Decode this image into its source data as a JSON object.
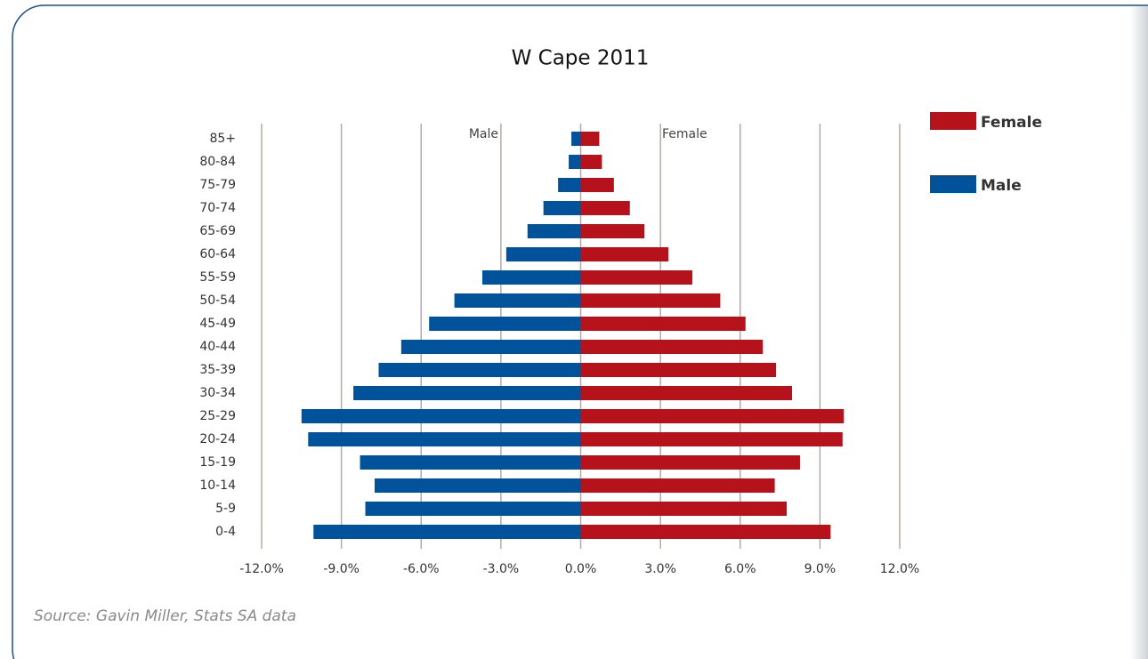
{
  "chart_data": {
    "type": "pyramid",
    "title": "W Cape 2011",
    "categories": [
      "85+",
      "80-84",
      "75-79",
      "70-74",
      "65-69",
      "60-64",
      "55-59",
      "50-54",
      "45-49",
      "40-44",
      "35-39",
      "30-34",
      "25-29",
      "20-24",
      "15-19",
      "10-14",
      "5-9",
      "0-4"
    ],
    "series": [
      {
        "name": "Female",
        "color": "#b5121b",
        "values": [
          0.7,
          0.8,
          1.25,
          1.85,
          2.4,
          3.3,
          4.2,
          5.25,
          6.2,
          6.85,
          7.35,
          7.95,
          9.9,
          9.85,
          8.25,
          7.3,
          7.75,
          9.4
        ]
      },
      {
        "name": "Male",
        "color": "#00529b",
        "values": [
          -0.35,
          -0.45,
          -0.85,
          -1.4,
          -2.0,
          -2.8,
          -3.7,
          -4.75,
          -5.7,
          -6.75,
          -7.6,
          -8.55,
          -10.5,
          -10.25,
          -8.3,
          -7.75,
          -8.1,
          -10.05
        ]
      }
    ],
    "xlim": [
      -12,
      12
    ],
    "xticks": [
      {
        "value": -12,
        "label": "-12.0%"
      },
      {
        "value": -9,
        "label": "-9.0%"
      },
      {
        "value": -6,
        "label": "-6.0%"
      },
      {
        "value": -3,
        "label": "-3.0%"
      },
      {
        "value": 0,
        "label": "0.0%"
      },
      {
        "value": 3,
        "label": "3.0%"
      },
      {
        "value": 6,
        "label": "6.0%"
      },
      {
        "value": 9,
        "label": "9.0%"
      },
      {
        "value": 12,
        "label": "12.0%"
      }
    ],
    "grid": true,
    "annotations": [
      "Male",
      "Female"
    ],
    "source": "Source: Gavin Miller, Stats SA data"
  }
}
